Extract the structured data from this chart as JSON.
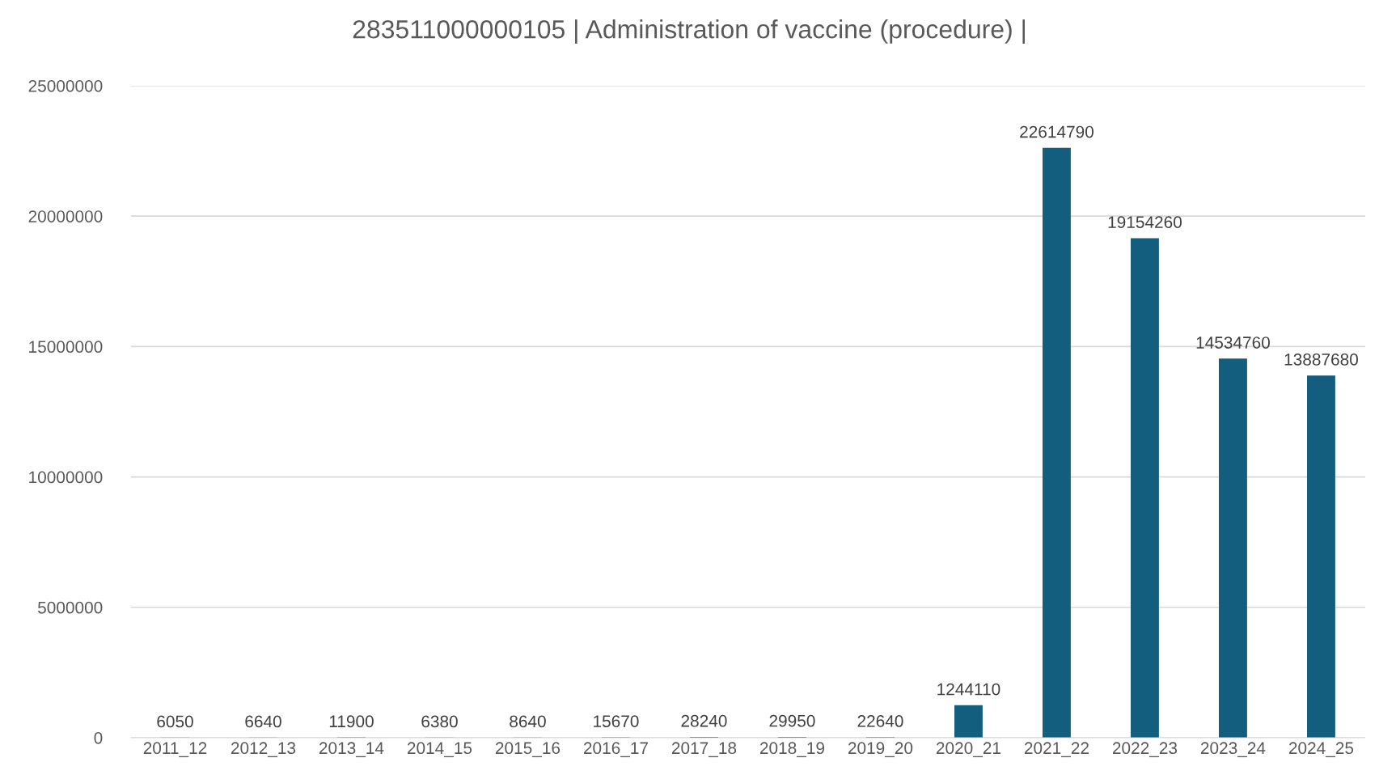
{
  "chart_data": {
    "type": "bar",
    "title": "283511000000105 | Administration of vaccine (procedure) |",
    "categories": [
      "2011_12",
      "2012_13",
      "2013_14",
      "2014_15",
      "2015_16",
      "2016_17",
      "2017_18",
      "2018_19",
      "2019_20",
      "2020_21",
      "2021_22",
      "2022_23",
      "2023_24",
      "2024_25"
    ],
    "values": [
      6050,
      6640,
      11900,
      6380,
      8640,
      15670,
      28240,
      29950,
      22640,
      1244110,
      22614790,
      19154260,
      14534760,
      13887680
    ],
    "color": "#135e7f",
    "ylim": [
      0,
      25000000
    ],
    "yticks": [
      0,
      5000000,
      10000000,
      15000000,
      20000000,
      25000000
    ],
    "grid": "y",
    "data_labels": true,
    "legend": false
  }
}
